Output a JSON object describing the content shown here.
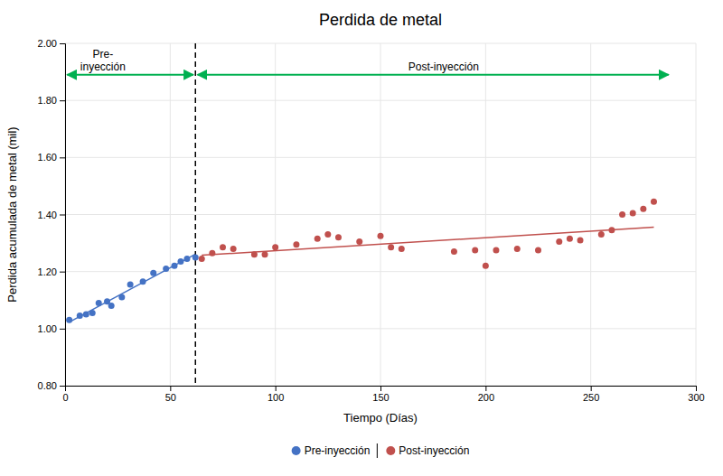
{
  "chart_data": {
    "type": "scatter",
    "title": "Perdida de metal",
    "x_label": "Tiempo (Días)",
    "y_label": "Perdida acumulada de metal (mil)",
    "xlim": [
      0,
      300
    ],
    "ylim": [
      0.8,
      2.0
    ],
    "xticks": [
      0,
      50,
      100,
      150,
      200,
      250,
      300
    ],
    "yticks": [
      {
        "value": 0.8,
        "label": "0.80"
      },
      {
        "value": 1.0,
        "label": "1.00"
      },
      {
        "value": 1.2,
        "label": "1.20"
      },
      {
        "value": 1.4,
        "label": "1.40"
      },
      {
        "value": 1.6,
        "label": "1.60"
      },
      {
        "value": 1.8,
        "label": "1.80"
      },
      {
        "value": 2.0,
        "label": "2.00"
      }
    ],
    "grid": true,
    "legend": "bottom",
    "series": [
      {
        "name": "Pre-inyección",
        "color": "#4472C4",
        "x": [
          2,
          7,
          10,
          13,
          16,
          20,
          22,
          27,
          31,
          37,
          42,
          48,
          52,
          55,
          58,
          62
        ],
        "values": [
          1.03,
          1.045,
          1.05,
          1.055,
          1.09,
          1.095,
          1.08,
          1.11,
          1.155,
          1.165,
          1.195,
          1.21,
          1.22,
          1.235,
          1.245,
          1.25
        ],
        "trend_x": [
          2,
          62
        ],
        "trend_values": [
          1.02266,
          1.26106
        ]
      },
      {
        "name": "Post-inyección",
        "color": "#C0504D",
        "x": [
          65,
          70,
          75,
          80,
          90,
          95,
          100,
          110,
          120,
          125,
          130,
          140,
          150,
          155,
          160,
          185,
          195,
          200,
          205,
          215,
          225,
          235,
          240,
          245,
          255,
          260,
          265,
          270,
          275,
          280
        ],
        "values": [
          1.245,
          1.265,
          1.285,
          1.28,
          1.26,
          1.26,
          1.285,
          1.295,
          1.315,
          1.33,
          1.32,
          1.305,
          1.325,
          1.285,
          1.28,
          1.27,
          1.275,
          1.22,
          1.275,
          1.28,
          1.275,
          1.305,
          1.315,
          1.31,
          1.33,
          1.345,
          1.4,
          1.405,
          1.42,
          1.445
        ],
        "trend_x": [
          65,
          280
        ],
        "trend_values": [
          1.25713,
          1.35532
        ]
      }
    ],
    "vlines": [
      62
    ],
    "arrows": [
      {
        "x1": 1,
        "x2": 61,
        "y": 1.89,
        "color": "#00B050"
      },
      {
        "x1": 63,
        "x2": 287,
        "y": 1.89,
        "color": "#00B050"
      }
    ],
    "annotations": [
      {
        "text": "Pre-\ninyección",
        "x": 18,
        "y": 1.895
      },
      {
        "text": "Post-inyección",
        "x": 180,
        "y": 1.895
      }
    ]
  }
}
